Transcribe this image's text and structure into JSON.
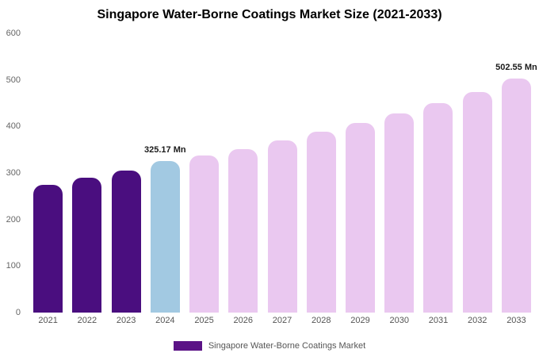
{
  "title": "Singapore Water-Borne Coatings Market Size (2021-2033)",
  "legend": {
    "label": "Singapore Water-Borne Coatings Market",
    "swatch_color": "#5b1386"
  },
  "colors": {
    "historical": "#4a0e7f",
    "current": "#a2c9e2",
    "forecast": "#eac8f0"
  },
  "chart_data": {
    "type": "bar",
    "title": "Singapore Water-Borne Coatings Market Size (2021-2033)",
    "categories": [
      "2021",
      "2022",
      "2023",
      "2024",
      "2025",
      "2026",
      "2027",
      "2028",
      "2029",
      "2030",
      "2031",
      "2032",
      "2033"
    ],
    "values": [
      275,
      290,
      305,
      325.17,
      337,
      352,
      370,
      388,
      407,
      428,
      450,
      474,
      502.55
    ],
    "bar_roles": [
      "historical",
      "historical",
      "historical",
      "current",
      "forecast",
      "forecast",
      "forecast",
      "forecast",
      "forecast",
      "forecast",
      "forecast",
      "forecast",
      "forecast"
    ],
    "annotations": [
      {
        "index": 3,
        "text": "325.17 Mn"
      },
      {
        "index": 12,
        "text": "502.55 Mn"
      }
    ],
    "xlabel": "",
    "ylabel": "",
    "ylim": [
      0,
      600
    ],
    "yticks": [
      0,
      100,
      200,
      300,
      400,
      500,
      600
    ],
    "grid": false,
    "legend_position": "bottom"
  }
}
